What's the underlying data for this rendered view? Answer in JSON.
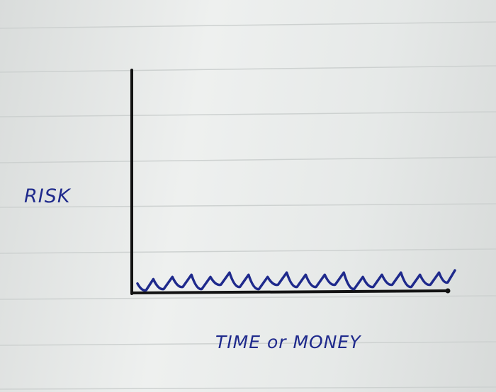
{
  "chart_data": {
    "type": "line",
    "title": "",
    "xlabel": "TIME or MONEY",
    "ylabel": "RISK",
    "grid": false,
    "legend": "none",
    "xlim": [
      0,
      1
    ],
    "ylim": [
      0,
      1
    ],
    "series": [
      {
        "color": "#1f2a8c",
        "x": [
          0.0,
          0.05,
          0.11,
          0.17,
          0.23,
          0.29,
          0.35,
          0.41,
          0.47,
          0.53,
          0.59,
          0.65,
          0.71,
          0.77,
          0.83,
          0.89,
          0.95,
          1.0
        ],
        "y": [
          0.03,
          0.05,
          0.06,
          0.07,
          0.06,
          0.08,
          0.07,
          0.06,
          0.08,
          0.07,
          0.07,
          0.08,
          0.06,
          0.07,
          0.08,
          0.07,
          0.08,
          0.09
        ]
      }
    ]
  },
  "colors": {
    "axis": "#121212",
    "ink": "#1f2a8c",
    "paper_line": "#c9cdcc"
  }
}
